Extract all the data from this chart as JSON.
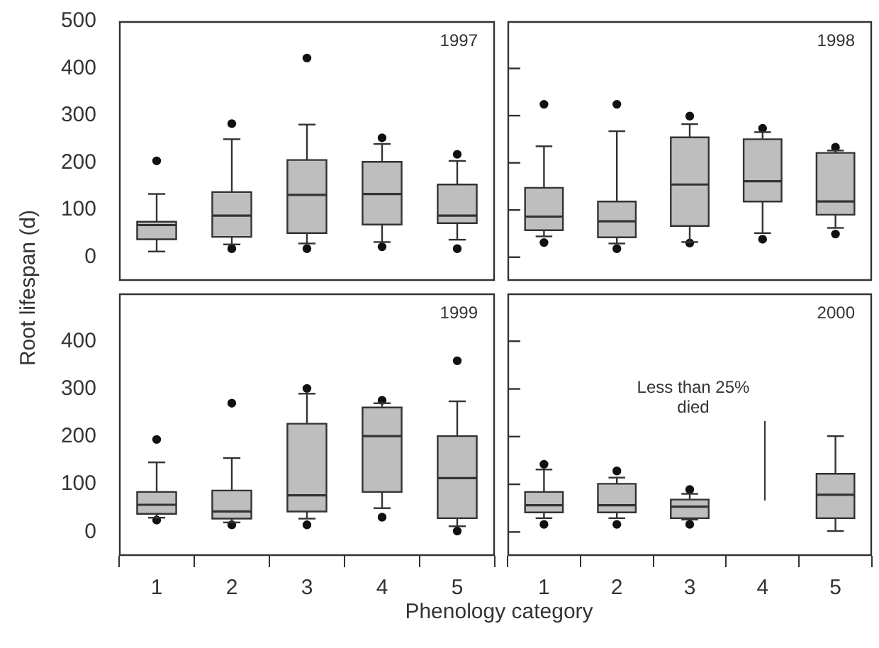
{
  "chart_data": [
    {
      "type": "box",
      "title": "1997",
      "ylabel": "Root lifespan (d)",
      "categories": [
        "1",
        "2",
        "3",
        "4",
        "5"
      ],
      "color": "#bebebe",
      "ylim": [
        -50,
        500
      ],
      "yticks": [
        0,
        100,
        200,
        300,
        400,
        500
      ],
      "tick_labels": "y",
      "boxes": [
        {
          "low": 12,
          "q1": 38,
          "median": 68,
          "q3": 75,
          "high": 134,
          "outliers": [
            204
          ]
        },
        {
          "low": 27,
          "q1": 43,
          "median": 88,
          "q3": 138,
          "high": 250,
          "outliers": [
            283,
            18
          ]
        },
        {
          "low": 29,
          "q1": 51,
          "median": 132,
          "q3": 206,
          "high": 281,
          "outliers": [
            422,
            18
          ]
        },
        {
          "low": 32,
          "q1": 69,
          "median": 134,
          "q3": 202,
          "high": 240,
          "outliers": [
            253,
            22
          ]
        },
        {
          "low": 37,
          "q1": 72,
          "median": 88,
          "q3": 154,
          "high": 204,
          "outliers": [
            218,
            18
          ]
        }
      ]
    },
    {
      "type": "box",
      "title": "1998",
      "categories": [
        "1",
        "2",
        "3",
        "4",
        "5"
      ],
      "color": "#bebebe",
      "ylim": [
        -50,
        500
      ],
      "yticks": [
        0,
        100,
        200,
        300,
        400
      ],
      "tick_labels": false,
      "boxes": [
        {
          "low": 44,
          "q1": 57,
          "median": 86,
          "q3": 147,
          "high": 235,
          "outliers": [
            324,
            31
          ]
        },
        {
          "low": 29,
          "q1": 42,
          "median": 76,
          "q3": 118,
          "high": 267,
          "outliers": [
            324,
            18
          ]
        },
        {
          "low": 32,
          "q1": 66,
          "median": 154,
          "q3": 254,
          "high": 282,
          "outliers": [
            299,
            30
          ]
        },
        {
          "low": 51,
          "q1": 118,
          "median": 161,
          "q3": 250,
          "high": 265,
          "outliers": [
            273,
            38
          ]
        },
        {
          "low": 62,
          "q1": 90,
          "median": 118,
          "q3": 221,
          "high": 226,
          "outliers": [
            233,
            49
          ]
        }
      ]
    },
    {
      "type": "box",
      "title": "1999",
      "categories": [
        "1",
        "2",
        "3",
        "4",
        "5"
      ],
      "color": "#bebebe",
      "ylim": [
        -50,
        500
      ],
      "yticks": [
        0,
        100,
        200,
        300,
        400
      ],
      "boxes": [
        {
          "low": 30,
          "q1": 38,
          "median": 57,
          "q3": 84,
          "high": 146,
          "outliers": [
            194,
            25
          ]
        },
        {
          "low": 20,
          "q1": 28,
          "median": 43,
          "q3": 87,
          "high": 155,
          "outliers": [
            270,
            15
          ]
        },
        {
          "low": 28,
          "q1": 43,
          "median": 77,
          "q3": 227,
          "high": 290,
          "outliers": [
            301,
            15
          ]
        },
        {
          "low": 50,
          "q1": 84,
          "median": 201,
          "q3": 261,
          "high": 270,
          "outliers": [
            276,
            31
          ]
        },
        {
          "low": 12,
          "q1": 29,
          "median": 113,
          "q3": 201,
          "high": 274,
          "outliers": [
            359,
            2
          ]
        }
      ]
    },
    {
      "type": "box",
      "title": "2000",
      "xlabel": "Phenology category",
      "categories": [
        "1",
        "2",
        "3",
        "4",
        "5"
      ],
      "color": "#bebebe",
      "ylim": [
        -50,
        500
      ],
      "yticks": [
        0,
        100,
        200,
        300,
        400
      ],
      "tick_labels": "x",
      "boxes": [
        {
          "low": 29,
          "q1": 41,
          "median": 56,
          "q3": 84,
          "high": 131,
          "outliers": [
            142,
            16
          ]
        },
        {
          "low": 29,
          "q1": 41,
          "median": 56,
          "q3": 101,
          "high": 114,
          "outliers": [
            128,
            16
          ]
        },
        {
          "low": 26,
          "q1": 29,
          "median": 53,
          "q3": 68,
          "high": 80,
          "outliers": [
            89,
            16
          ]
        },
        null,
        {
          "low": 2,
          "q1": 29,
          "median": 78,
          "q3": 122,
          "high": 201
        }
      ],
      "annotations": [
        "Less than 25% died"
      ]
    }
  ]
}
